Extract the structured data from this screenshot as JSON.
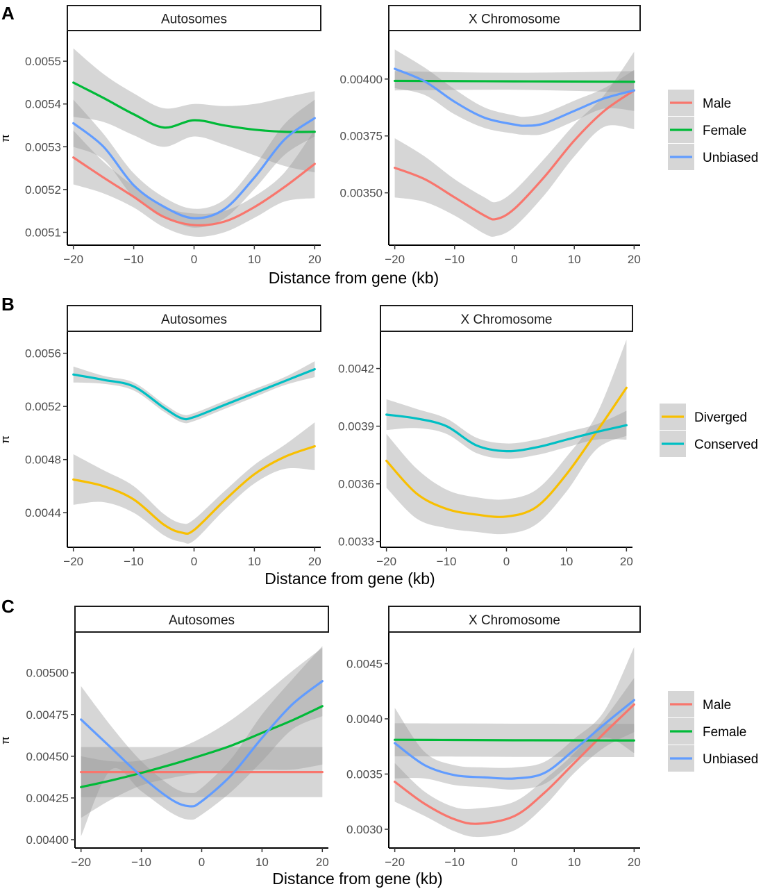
{
  "figure": {
    "rows": [
      {
        "tag": "A"
      },
      {
        "tag": "B"
      },
      {
        "tag": "C"
      }
    ]
  },
  "chart_data": [
    {
      "type": "line",
      "panel": "A",
      "facet": "Autosomes",
      "xlabel": "Distance from gene (kb)",
      "ylabel": "π",
      "xlim": [
        -21,
        21
      ],
      "ylim": [
        0.00507,
        0.00557
      ],
      "x_ticks": [
        "−20",
        "−10",
        "0",
        "10",
        "20"
      ],
      "x_tick_values": [
        -20,
        -10,
        0,
        10,
        20
      ],
      "y_ticks": [
        "0.0051",
        "0.0052",
        "0.0053",
        "0.0054",
        "0.0055"
      ],
      "y_tick_values": [
        0.0051,
        0.0052,
        0.0053,
        0.0054,
        0.0055
      ],
      "series": [
        {
          "name": "Male",
          "color": "#F8766D",
          "x": [
            -20,
            -15,
            -10,
            -5,
            0,
            5,
            10,
            15,
            20
          ],
          "y": [
            0.005275,
            0.005228,
            0.005183,
            0.005136,
            0.005117,
            0.005125,
            0.005159,
            0.005206,
            0.00526
          ],
          "upper": [
            0.005338,
            0.005265,
            0.005208,
            0.00516,
            0.005144,
            0.00515,
            0.005184,
            0.00524,
            0.00534
          ],
          "lower": [
            0.005212,
            0.005191,
            0.005158,
            0.005112,
            0.00509,
            0.0051,
            0.005134,
            0.005172,
            0.00518
          ]
        },
        {
          "name": "Female",
          "color": "#00BA38",
          "x": [
            -20,
            -15,
            -10,
            -5,
            0,
            5,
            10,
            15,
            20
          ],
          "y": [
            0.00545,
            0.005414,
            0.005376,
            0.005345,
            0.005362,
            0.00535,
            0.00534,
            0.005335,
            0.005335
          ],
          "upper": [
            0.00553,
            0.00547,
            0.005425,
            0.00539,
            0.0054,
            0.005395,
            0.0054,
            0.005415,
            0.00543
          ],
          "lower": [
            0.00537,
            0.005358,
            0.005327,
            0.0053,
            0.005324,
            0.005305,
            0.00528,
            0.005255,
            0.00524
          ]
        },
        {
          "name": "Unbiased",
          "color": "#619CFF",
          "x": [
            -20,
            -15,
            -10,
            -5,
            0,
            5,
            10,
            15,
            20
          ],
          "y": [
            0.005355,
            0.0053,
            0.00521,
            0.00516,
            0.005133,
            0.005154,
            0.005228,
            0.005317,
            0.005367
          ],
          "upper": [
            0.00541,
            0.00533,
            0.005238,
            0.005182,
            0.005155,
            0.005176,
            0.005255,
            0.005353,
            0.00541
          ],
          "lower": [
            0.0053,
            0.00527,
            0.005182,
            0.005138,
            0.005111,
            0.005132,
            0.005201,
            0.005281,
            0.005324
          ]
        }
      ]
    },
    {
      "type": "line",
      "panel": "A",
      "facet": "X Chromosome",
      "xlabel": "Distance from gene (kb)",
      "ylabel": "",
      "xlim": [
        -21,
        21
      ],
      "ylim": [
        0.00327,
        0.00421
      ],
      "x_ticks": [
        "−20",
        "−10",
        "0",
        "10",
        "20"
      ],
      "x_tick_values": [
        -20,
        -10,
        0,
        10,
        20
      ],
      "y_ticks": [
        "0.00350",
        "0.00375",
        "0.00400"
      ],
      "y_tick_values": [
        0.0035,
        0.00375,
        0.004
      ],
      "series": [
        {
          "name": "Male",
          "color": "#F8766D",
          "x": [
            -20,
            -15,
            -10,
            -5,
            -3,
            0,
            5,
            10,
            15,
            20
          ],
          "y": [
            0.00361,
            0.00356,
            0.00348,
            0.0034,
            0.003385,
            0.00343,
            0.00357,
            0.00373,
            0.00386,
            0.00395
          ],
          "upper": [
            0.00374,
            0.00366,
            0.00356,
            0.00348,
            0.00346,
            0.00351,
            0.00365,
            0.0038,
            0.00393,
            0.00412
          ],
          "lower": [
            0.00348,
            0.00346,
            0.0034,
            0.00332,
            0.00331,
            0.00335,
            0.00349,
            0.00366,
            0.00379,
            0.00378
          ]
        },
        {
          "name": "Female",
          "color": "#00BA38",
          "x": [
            -20,
            -10,
            0,
            10,
            20
          ],
          "y": [
            0.003992,
            0.003991,
            0.00399,
            0.003989,
            0.003988
          ],
          "upper": [
            0.004035,
            0.00403,
            0.004028,
            0.00403,
            0.004035
          ],
          "lower": [
            0.00395,
            0.003952,
            0.003953,
            0.003948,
            0.003941
          ]
        },
        {
          "name": "Unbiased",
          "color": "#619CFF",
          "x": [
            -20,
            -15,
            -10,
            -5,
            0,
            2,
            5,
            10,
            15,
            20
          ],
          "y": [
            0.004045,
            0.00399,
            0.0039,
            0.00383,
            0.0038,
            0.003795,
            0.003805,
            0.00386,
            0.003915,
            0.00395
          ],
          "upper": [
            0.00413,
            0.00405,
            0.003955,
            0.003875,
            0.00384,
            0.003835,
            0.00385,
            0.003905,
            0.00396,
            0.00404
          ],
          "lower": [
            0.00396,
            0.00393,
            0.003845,
            0.003785,
            0.00376,
            0.003755,
            0.00376,
            0.003815,
            0.00387,
            0.00386
          ]
        }
      ]
    },
    {
      "type": "line",
      "panel": "B",
      "facet": "Autosomes",
      "xlabel": "Distance from gene (kb)",
      "ylabel": "π",
      "xlim": [
        -21,
        21
      ],
      "ylim": [
        0.00414,
        0.00576
      ],
      "x_ticks": [
        "−20",
        "−10",
        "0",
        "10",
        "20"
      ],
      "x_tick_values": [
        -20,
        -10,
        0,
        10,
        20
      ],
      "y_ticks": [
        "0.0044",
        "0.0048",
        "0.0052",
        "0.0056"
      ],
      "y_tick_values": [
        0.0044,
        0.0048,
        0.0052,
        0.0056
      ],
      "series": [
        {
          "name": "Diverged",
          "color": "#F8BF00",
          "x": [
            -20,
            -15,
            -10,
            -5,
            -2,
            0,
            5,
            10,
            15,
            20
          ],
          "y": [
            0.00465,
            0.0046,
            0.0045,
            0.00431,
            0.00425,
            0.00427,
            0.00449,
            0.00469,
            0.00482,
            0.0049
          ],
          "upper": [
            0.00484,
            0.00472,
            0.0046,
            0.00439,
            0.00432,
            0.00435,
            0.00456,
            0.00476,
            0.00491,
            0.00508
          ],
          "lower": [
            0.00446,
            0.00448,
            0.0044,
            0.00423,
            0.00418,
            0.00419,
            0.00442,
            0.00462,
            0.00473,
            0.00472
          ]
        },
        {
          "name": "Conserved",
          "color": "#00BFC4",
          "x": [
            -20,
            -15,
            -10,
            -5,
            -2,
            0,
            5,
            10,
            15,
            20
          ],
          "y": [
            0.00544,
            0.0054,
            0.00535,
            0.00519,
            0.00511,
            0.00512,
            0.00521,
            0.0053,
            0.00539,
            0.00548
          ],
          "upper": [
            0.0055,
            0.00543,
            0.00538,
            0.00522,
            0.00514,
            0.00515,
            0.00524,
            0.00533,
            0.00542,
            0.00554
          ],
          "lower": [
            0.00538,
            0.00537,
            0.00532,
            0.00516,
            0.00508,
            0.00509,
            0.00518,
            0.00527,
            0.00536,
            0.00542
          ]
        }
      ]
    },
    {
      "type": "line",
      "panel": "B",
      "facet": "X Chromosome",
      "xlabel": "Distance from gene (kb)",
      "ylabel": "",
      "xlim": [
        -21,
        21
      ],
      "ylim": [
        0.00327,
        0.00439
      ],
      "x_ticks": [
        "−20",
        "−10",
        "0",
        "10",
        "20"
      ],
      "x_tick_values": [
        -20,
        -10,
        0,
        10,
        20
      ],
      "y_ticks": [
        "0.0033",
        "0.0036",
        "0.0039",
        "0.0042"
      ],
      "y_tick_values": [
        0.0033,
        0.0036,
        0.0039,
        0.0042
      ],
      "series": [
        {
          "name": "Diverged",
          "color": "#F8BF00",
          "x": [
            -20,
            -15,
            -10,
            -5,
            0,
            5,
            10,
            15,
            20
          ],
          "y": [
            0.00372,
            0.00355,
            0.00347,
            0.00344,
            0.00343,
            0.00348,
            0.00365,
            0.00387,
            0.0041
          ],
          "upper": [
            0.00386,
            0.00368,
            0.00357,
            0.00353,
            0.00352,
            0.00357,
            0.00374,
            0.00396,
            0.00435
          ],
          "lower": [
            0.00358,
            0.00342,
            0.00337,
            0.00335,
            0.00334,
            0.00339,
            0.00356,
            0.00378,
            0.00385
          ]
        },
        {
          "name": "Conserved",
          "color": "#00BFC4",
          "x": [
            -20,
            -15,
            -10,
            -5,
            0,
            5,
            10,
            15,
            20
          ],
          "y": [
            0.00396,
            0.00394,
            0.0039,
            0.0038,
            0.00377,
            0.00379,
            0.00383,
            0.00387,
            0.003905
          ],
          "upper": [
            0.00404,
            0.00399,
            0.00394,
            0.00384,
            0.00381,
            0.00383,
            0.00387,
            0.00391,
            0.00398
          ],
          "lower": [
            0.00388,
            0.00389,
            0.00386,
            0.00376,
            0.00373,
            0.00375,
            0.00379,
            0.00383,
            0.00383
          ]
        }
      ]
    },
    {
      "type": "line",
      "panel": "C",
      "facet": "Autosomes",
      "xlabel": "Distance from gene (kb)",
      "ylabel": "π",
      "xlim": [
        -21,
        21
      ],
      "ylim": [
        0.00395,
        0.00524
      ],
      "x_ticks": [
        "−20",
        "−10",
        "0",
        "10",
        "20"
      ],
      "x_tick_values": [
        -20,
        -10,
        0,
        10,
        20
      ],
      "y_ticks": [
        "0.00400",
        "0.00425",
        "0.00450",
        "0.00475",
        "0.00500"
      ],
      "y_tick_values": [
        0.004,
        0.00425,
        0.0045,
        0.00475,
        0.005
      ],
      "series": [
        {
          "name": "Male",
          "color": "#F8766D",
          "x": [
            -20,
            -10,
            0,
            10,
            20
          ],
          "y": [
            0.004405,
            0.004405,
            0.004405,
            0.004405,
            0.004405
          ],
          "upper": [
            0.004555,
            0.004555,
            0.004555,
            0.004555,
            0.004555
          ],
          "lower": [
            0.004255,
            0.004255,
            0.004255,
            0.004255,
            0.004255
          ]
        },
        {
          "name": "Female",
          "color": "#00BA38",
          "x": [
            -20,
            -15,
            -10,
            -5,
            0,
            5,
            10,
            15,
            20
          ],
          "y": [
            0.004315,
            0.004355,
            0.0044,
            0.00445,
            0.004505,
            0.004565,
            0.00464,
            0.004715,
            0.0048
          ],
          "upper": [
            0.0045,
            0.00447,
            0.004475,
            0.00453,
            0.00461,
            0.00472,
            0.00486,
            0.00501,
            0.00515
          ],
          "lower": [
            0.00413,
            0.00424,
            0.004325,
            0.00437,
            0.0044,
            0.00441,
            0.00442,
            0.00442,
            0.00445
          ]
        },
        {
          "name": "Unbiased",
          "color": "#619CFF",
          "x": [
            -20,
            -15,
            -10,
            -5,
            -2,
            0,
            5,
            10,
            15,
            20
          ],
          "y": [
            0.00472,
            0.00455,
            0.00438,
            0.00424,
            0.0042,
            0.00423,
            0.00439,
            0.00461,
            0.00481,
            0.00495
          ],
          "upper": [
            0.00492,
            0.00468,
            0.00447,
            0.00432,
            0.00428,
            0.00431,
            0.00449,
            0.00475,
            0.00496,
            0.00516
          ],
          "lower": [
            0.00402,
            0.00442,
            0.00429,
            0.00416,
            0.00412,
            0.00415,
            0.00429,
            0.00447,
            0.00466,
            0.00474
          ]
        }
      ]
    },
    {
      "type": "line",
      "panel": "C",
      "facet": "X Chromosome",
      "xlabel": "Distance from gene (kb)",
      "ylabel": "",
      "xlim": [
        -21,
        21
      ],
      "ylim": [
        0.00283,
        0.00478
      ],
      "x_ticks": [
        "−20",
        "−10",
        "0",
        "10",
        "20"
      ],
      "x_tick_values": [
        -20,
        -10,
        0,
        10,
        20
      ],
      "y_ticks": [
        "0.0030",
        "0.0035",
        "0.0040",
        "0.0045"
      ],
      "y_tick_values": [
        0.003,
        0.0035,
        0.004,
        0.0045
      ],
      "series": [
        {
          "name": "Male",
          "color": "#F8766D",
          "x": [
            -20,
            -15,
            -10,
            -6,
            0,
            5,
            10,
            15,
            20
          ],
          "y": [
            0.00343,
            0.00323,
            0.00309,
            0.00305,
            0.00312,
            0.00333,
            0.0036,
            0.00387,
            0.00413
          ],
          "upper": [
            0.0036,
            0.00334,
            0.0032,
            0.00319,
            0.00325,
            0.00345,
            0.00369,
            0.004,
            0.00437
          ],
          "lower": [
            0.00325,
            0.00312,
            0.00298,
            0.00293,
            0.00299,
            0.00321,
            0.00351,
            0.00374,
            0.00388
          ]
        },
        {
          "name": "Female",
          "color": "#00BA38",
          "x": [
            -20,
            -10,
            0,
            10,
            20
          ],
          "y": [
            0.00381,
            0.003808,
            0.003806,
            0.003805,
            0.003804
          ],
          "upper": [
            0.00396,
            0.003958,
            0.003956,
            0.003955,
            0.003954
          ],
          "lower": [
            0.00366,
            0.003658,
            0.003656,
            0.003655,
            0.003654
          ]
        },
        {
          "name": "Unbiased",
          "color": "#619CFF",
          "x": [
            -20,
            -15,
            -10,
            -5,
            0,
            5,
            10,
            15,
            20
          ],
          "y": [
            0.00378,
            0.00358,
            0.00349,
            0.00347,
            0.00346,
            0.00351,
            0.00372,
            0.00395,
            0.00417
          ],
          "upper": [
            0.0041,
            0.0037,
            0.00358,
            0.00356,
            0.00356,
            0.00361,
            0.00382,
            0.00407,
            0.00465
          ],
          "lower": [
            0.00346,
            0.00346,
            0.0034,
            0.00338,
            0.00336,
            0.00341,
            0.00362,
            0.00383,
            0.00369
          ]
        }
      ]
    }
  ]
}
